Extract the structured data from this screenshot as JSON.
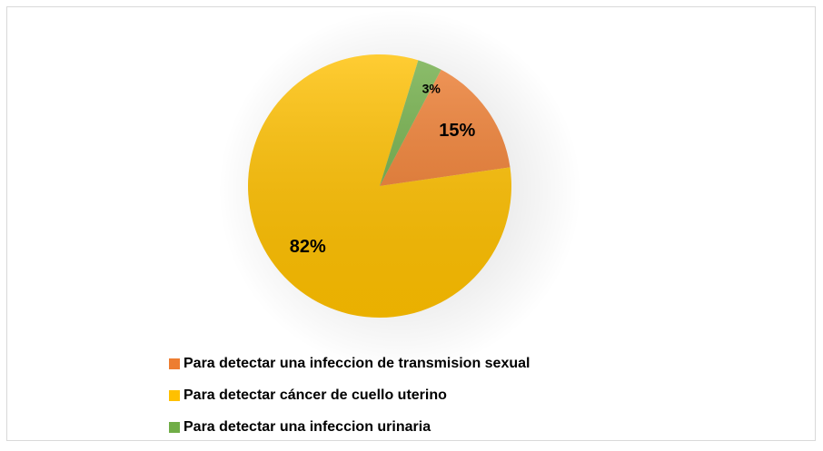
{
  "chart_data": {
    "type": "pie",
    "categories": [
      "Para detectar una infeccion de transmision sexual",
      "Para detectar cáncer de cuello uterino",
      "Para detectar una infeccion urinaria"
    ],
    "values": [
      15,
      82,
      3
    ],
    "value_labels": [
      "15%",
      "82%",
      "3%"
    ],
    "colors": [
      "#ed7d31",
      "#ffc000",
      "#70ad47"
    ]
  }
}
